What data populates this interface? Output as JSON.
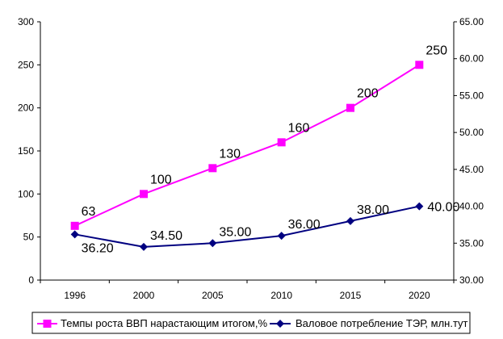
{
  "chart_data": {
    "type": "line",
    "categories": [
      "1996",
      "2000",
      "2005",
      "2010",
      "2015",
      "2020"
    ],
    "y_left": {
      "ylim": [
        0,
        300
      ],
      "ticks": [
        "0",
        "50",
        "100",
        "150",
        "200",
        "250",
        "300"
      ]
    },
    "y_right": {
      "ylim": [
        30,
        65
      ],
      "ticks": [
        "30.00",
        "35.00",
        "40.00",
        "45.00",
        "50.00",
        "55.00",
        "60.00",
        "65.00"
      ]
    },
    "grid": false,
    "legend_position": "bottom",
    "series": [
      {
        "name": "Темпы роста ВВП нарастающим итогом,%",
        "axis": "left",
        "color": "#ff00ff",
        "marker": "square",
        "values": [
          63,
          100,
          130,
          160,
          200,
          250
        ],
        "labels": [
          "63",
          "100",
          "130",
          "160",
          "200",
          "250"
        ]
      },
      {
        "name": "Валовое потребление ТЭР, млн.тут",
        "axis": "right",
        "color": "#000080",
        "marker": "diamond",
        "values": [
          36.2,
          34.5,
          35.0,
          36.0,
          38.0,
          40.0
        ],
        "labels": [
          "36.20",
          "34.50",
          "35.00",
          "36.00",
          "38.00",
          "40.00"
        ]
      }
    ]
  }
}
